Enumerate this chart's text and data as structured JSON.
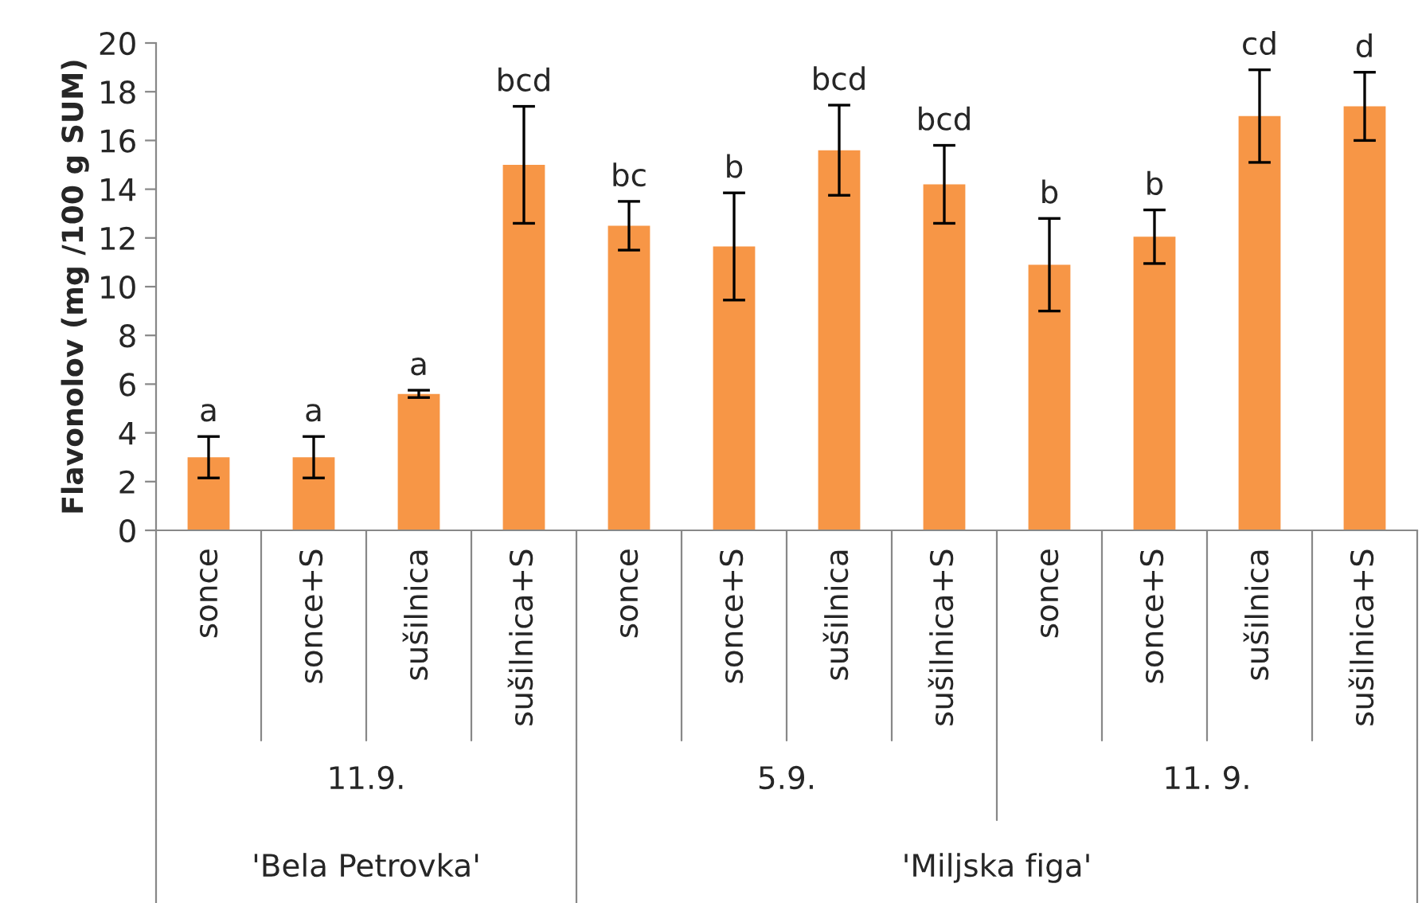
{
  "chart_data": {
    "type": "bar",
    "ylabel": "Flavonolov (mg /100 g SUM)",
    "categories": [
      "sonce",
      "sonce+S",
      "sušilnica",
      "sušilnica+S",
      "sonce",
      "sonce+S",
      "sušilnica",
      "sušilnica+S",
      "sonce",
      "sonce+S",
      "sušilnica",
      "sušilnica+S"
    ],
    "values": [
      3.0,
      3.0,
      5.6,
      15.0,
      12.5,
      11.65,
      15.6,
      14.2,
      10.9,
      12.05,
      17.0,
      17.4
    ],
    "errors": [
      0.85,
      0.85,
      0.15,
      2.4,
      1.0,
      2.2,
      1.85,
      1.6,
      1.9,
      1.1,
      1.9,
      1.4
    ],
    "color": "#f79646",
    "ylim": [
      0,
      20
    ],
    "yticks": [
      0,
      2,
      4,
      6,
      8,
      10,
      12,
      14,
      16,
      18,
      20
    ],
    "grid": false,
    "annotations": [
      {
        "text": "a",
        "y": 3.85
      },
      {
        "text": "a",
        "y": 3.85
      },
      {
        "text": "a",
        "y": 5.75
      },
      {
        "text": "bcd",
        "y": 17.4
      },
      {
        "text": "bc",
        "y": 13.5
      },
      {
        "text": "b",
        "y": 13.85
      },
      {
        "text": "bcd",
        "y": 17.45
      },
      {
        "text": "bcd",
        "y": 15.8
      },
      {
        "text": "b",
        "y": 12.8
      },
      {
        "text": "b",
        "y": 13.15
      },
      {
        "text": "cd",
        "y": 18.9
      },
      {
        "text": "d",
        "y": 18.8
      },
      "11.9.",
      "5.9.",
      "11. 9.",
      "'Bela Petrovka'",
      "'Miljska figa'"
    ]
  }
}
